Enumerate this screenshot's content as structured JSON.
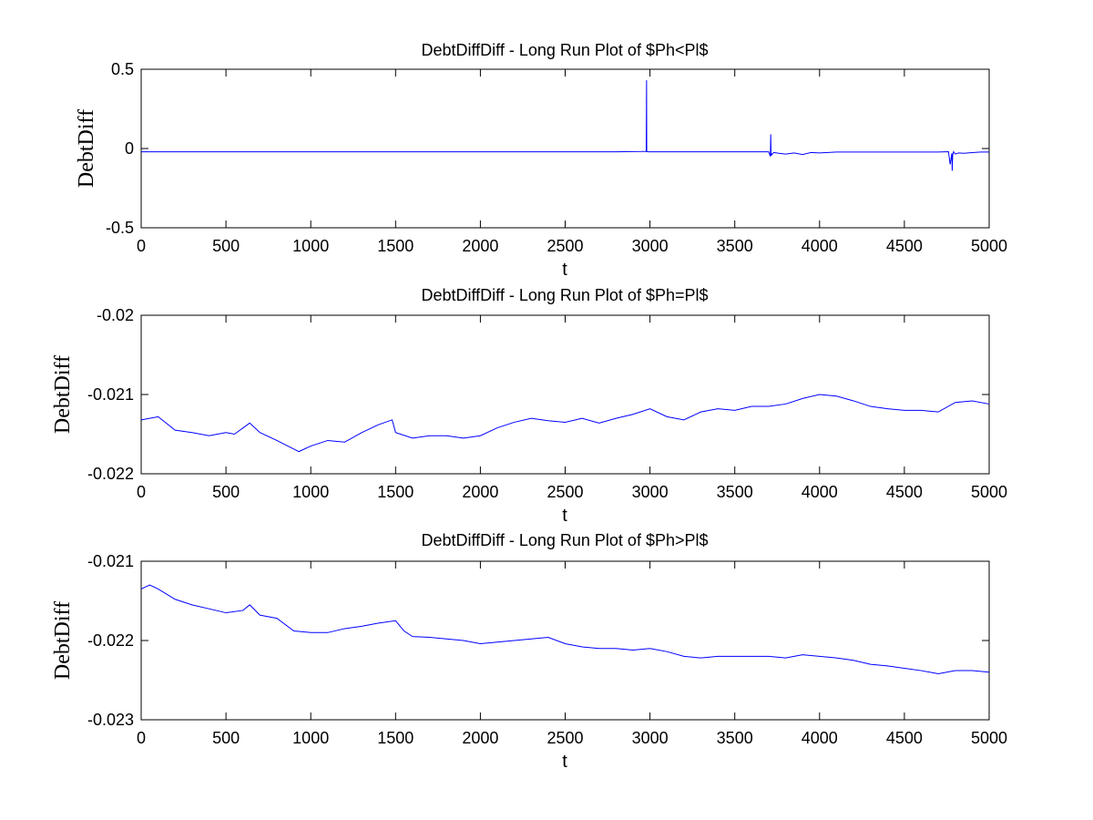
{
  "chart_data": [
    {
      "type": "line",
      "title": "DebtDiffDiff - Long Run Plot of $Ph<Pl$",
      "xlabel": "t",
      "ylabel": "DebtDiff",
      "xlim": [
        0,
        5000
      ],
      "ylim": [
        -0.5,
        0.5
      ],
      "xticks": [
        0,
        500,
        1000,
        1500,
        2000,
        2500,
        3000,
        3500,
        4000,
        4500,
        5000
      ],
      "yticks": [
        -0.5,
        0,
        0.5
      ],
      "ytick_labels": [
        "-0.5",
        "0",
        "0.5"
      ],
      "grid": false,
      "legend": "none",
      "color": "#0000ff",
      "series": [
        {
          "x": [
            0,
            2800,
            2950,
            2978,
            2980,
            2981,
            2983,
            2990,
            3700,
            3710,
            3712,
            3714,
            3716,
            3718,
            3730,
            3760,
            3800,
            3850,
            3900,
            3950,
            4000,
            4100,
            4700,
            4760,
            4770,
            4780,
            4782,
            4785,
            4790,
            4800,
            4820,
            4850,
            4900,
            4950,
            5000
          ],
          "y": [
            -0.021,
            -0.021,
            -0.019,
            -0.018,
            0.43,
            -0.017,
            -0.02,
            -0.021,
            -0.021,
            -0.05,
            0.09,
            -0.045,
            -0.03,
            -0.04,
            -0.025,
            -0.03,
            -0.035,
            -0.028,
            -0.038,
            -0.025,
            -0.028,
            -0.022,
            -0.022,
            -0.02,
            -0.1,
            -0.03,
            -0.14,
            -0.04,
            -0.02,
            -0.035,
            -0.028,
            -0.03,
            -0.026,
            -0.022,
            -0.022
          ]
        }
      ]
    },
    {
      "type": "line",
      "title": "DebtDiffDiff - Long Run Plot of $Ph=Pl$",
      "xlabel": "t",
      "ylabel": "DebtDiff",
      "xlim": [
        0,
        5000
      ],
      "ylim": [
        -0.022,
        -0.02
      ],
      "xticks": [
        0,
        500,
        1000,
        1500,
        2000,
        2500,
        3000,
        3500,
        4000,
        4500,
        5000
      ],
      "yticks": [
        -0.022,
        -0.021,
        -0.02
      ],
      "ytick_labels": [
        "-0.022",
        "-0.021",
        "-0.02"
      ],
      "grid": false,
      "legend": "none",
      "color": "#0000ff",
      "series": [
        {
          "x": [
            0,
            100,
            200,
            300,
            400,
            500,
            550,
            640,
            700,
            800,
            930,
            1000,
            1100,
            1200,
            1300,
            1400,
            1480,
            1500,
            1600,
            1700,
            1800,
            1900,
            2000,
            2100,
            2200,
            2300,
            2400,
            2500,
            2600,
            2700,
            2800,
            2900,
            3000,
            3100,
            3200,
            3300,
            3400,
            3500,
            3600,
            3700,
            3800,
            3900,
            4000,
            4100,
            4200,
            4300,
            4400,
            4500,
            4600,
            4700,
            4800,
            4900,
            5000
          ],
          "y": [
            -0.02132,
            -0.02128,
            -0.02145,
            -0.02148,
            -0.02152,
            -0.02148,
            -0.0215,
            -0.02136,
            -0.02148,
            -0.02158,
            -0.02172,
            -0.02165,
            -0.02158,
            -0.0216,
            -0.02148,
            -0.02138,
            -0.02132,
            -0.02148,
            -0.02155,
            -0.02152,
            -0.02152,
            -0.02155,
            -0.02152,
            -0.02142,
            -0.02135,
            -0.0213,
            -0.02133,
            -0.02135,
            -0.0213,
            -0.02136,
            -0.0213,
            -0.02125,
            -0.02118,
            -0.02128,
            -0.02132,
            -0.02122,
            -0.02118,
            -0.0212,
            -0.02115,
            -0.02115,
            -0.02112,
            -0.02105,
            -0.021,
            -0.02102,
            -0.02108,
            -0.02115,
            -0.02118,
            -0.0212,
            -0.0212,
            -0.02122,
            -0.0211,
            -0.02108,
            -0.02112
          ]
        }
      ]
    },
    {
      "type": "line",
      "title": "DebtDiffDiff - Long Run Plot of $Ph>Pl$",
      "xlabel": "t",
      "ylabel": "DebtDiff",
      "xlim": [
        0,
        5000
      ],
      "ylim": [
        -0.023,
        -0.021
      ],
      "xticks": [
        0,
        500,
        1000,
        1500,
        2000,
        2500,
        3000,
        3500,
        4000,
        4500,
        5000
      ],
      "yticks": [
        -0.023,
        -0.022,
        -0.021
      ],
      "ytick_labels": [
        "-0.023",
        "-0.022",
        "-0.021"
      ],
      "grid": false,
      "legend": "none",
      "color": "#0000ff",
      "series": [
        {
          "x": [
            0,
            50,
            100,
            200,
            300,
            400,
            500,
            600,
            640,
            700,
            800,
            900,
            1000,
            1100,
            1200,
            1300,
            1400,
            1500,
            1550,
            1600,
            1700,
            1800,
            1900,
            2000,
            2100,
            2200,
            2300,
            2400,
            2500,
            2600,
            2700,
            2800,
            2900,
            3000,
            3100,
            3200,
            3300,
            3400,
            3500,
            3600,
            3700,
            3800,
            3900,
            4000,
            4100,
            4200,
            4300,
            4400,
            4500,
            4600,
            4700,
            4800,
            4900,
            5000
          ],
          "y": [
            -0.02135,
            -0.0213,
            -0.02135,
            -0.02148,
            -0.02155,
            -0.0216,
            -0.02165,
            -0.02162,
            -0.02155,
            -0.02168,
            -0.02172,
            -0.02188,
            -0.0219,
            -0.0219,
            -0.02185,
            -0.02182,
            -0.02178,
            -0.02175,
            -0.02188,
            -0.02195,
            -0.02196,
            -0.02198,
            -0.022,
            -0.02204,
            -0.02202,
            -0.022,
            -0.02198,
            -0.02196,
            -0.02204,
            -0.02208,
            -0.0221,
            -0.0221,
            -0.02212,
            -0.0221,
            -0.02214,
            -0.0222,
            -0.02222,
            -0.0222,
            -0.0222,
            -0.0222,
            -0.0222,
            -0.02222,
            -0.02218,
            -0.0222,
            -0.02222,
            -0.02225,
            -0.0223,
            -0.02232,
            -0.02235,
            -0.02238,
            -0.02242,
            -0.02238,
            -0.02238,
            -0.0224
          ]
        }
      ]
    }
  ]
}
